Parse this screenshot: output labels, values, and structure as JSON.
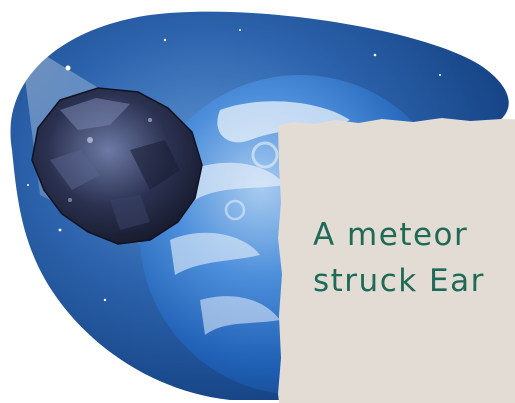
{
  "illustration": {
    "subjects": [
      "meteor-icon",
      "earth-icon",
      "stars-icon"
    ],
    "colors": {
      "space_dark": "#0f3a7a",
      "space_light": "#4f86c7",
      "earth_blue": "#2f74c9",
      "earth_cloud": "#e9f1fb",
      "meteor": "#2b2f47"
    }
  },
  "caption": {
    "line1": "A meteor",
    "line2": "struck Ear",
    "card_color": "#e3dcd5",
    "text_color": "#1e6a57"
  }
}
